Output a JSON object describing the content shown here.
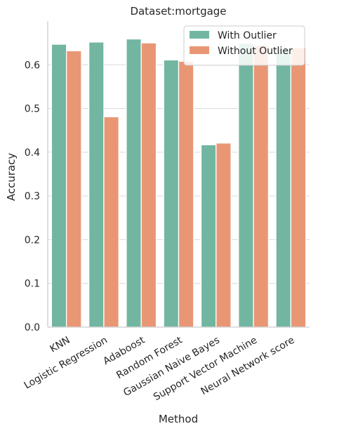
{
  "chart_data": {
    "type": "bar",
    "title": "Dataset:mortgage",
    "xlabel": "Method",
    "ylabel": "Accuracy",
    "ylim": [
      0,
      0.7
    ],
    "yticks": [
      "0.0",
      "0.1",
      "0.2",
      "0.3",
      "0.4",
      "0.5",
      "0.6"
    ],
    "grid": "horizontal",
    "legend_position": "top-right",
    "categories": [
      "KNN",
      "Logistic Regression",
      "Adaboost",
      "Random Forest",
      "Gaussian Naive Bayes",
      "Support Vector Machine",
      "Neural Network score"
    ],
    "series": [
      {
        "name": "With Outlier",
        "color": "#72b6a1",
        "values": [
          0.647,
          0.652,
          0.659,
          0.611,
          0.417,
          0.649,
          0.636
        ]
      },
      {
        "name": "Without Outlier",
        "color": "#e99675",
        "values": [
          0.632,
          0.481,
          0.65,
          0.608,
          0.421,
          0.644,
          0.639
        ]
      }
    ]
  }
}
